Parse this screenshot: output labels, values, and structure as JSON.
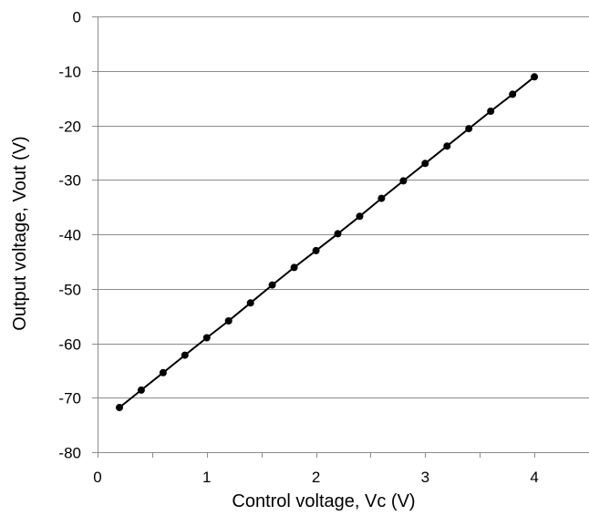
{
  "chart_data": {
    "type": "line",
    "title": "",
    "xlabel": "Control voltage, Vc (V)",
    "ylabel": "Output voltage, Vout (V)",
    "xlim": [
      0,
      4.5
    ],
    "ylim": [
      -80,
      0
    ],
    "x_ticks": [
      0,
      1,
      2,
      3,
      4
    ],
    "y_ticks": [
      0,
      -10,
      -20,
      -30,
      -40,
      -50,
      -60,
      -70,
      -80
    ],
    "grid": "horizontal",
    "legend": "none",
    "series": [
      {
        "color": "#000000",
        "marker": "circle",
        "x": [
          0.2,
          0.4,
          0.6,
          0.8,
          1.0,
          1.2,
          1.4,
          1.6,
          1.8,
          2.0,
          2.2,
          2.4,
          2.6,
          2.8,
          3.0,
          3.2,
          3.4,
          3.6,
          3.8,
          4.0
        ],
        "y": [
          -71.8,
          -68.6,
          -65.4,
          -62.2,
          -59.0,
          -55.9,
          -52.6,
          -49.3,
          -46.1,
          -43.0,
          -39.9,
          -36.7,
          -33.4,
          -30.2,
          -27.0,
          -23.8,
          -20.6,
          -17.4,
          -14.3,
          -11.1
        ]
      }
    ]
  }
}
